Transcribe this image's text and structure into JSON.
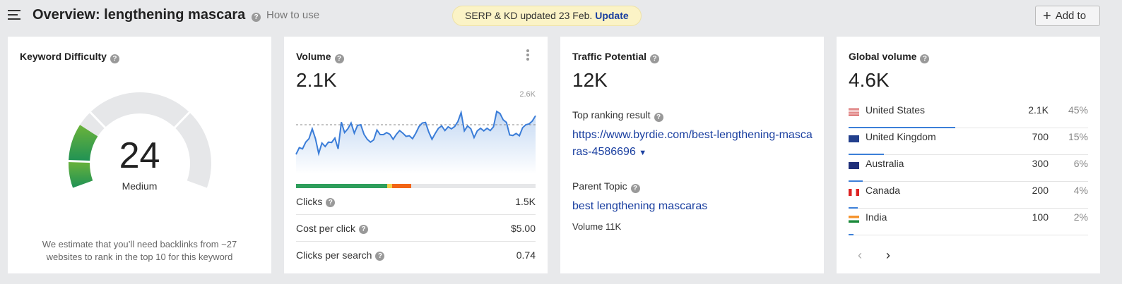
{
  "header": {
    "title": "Overview: lengthening mascara",
    "how_to_use": "How to use",
    "serp_notice": "SERP & KD updated 23 Feb.",
    "serp_update": "Update",
    "add_to": "Add to"
  },
  "kd": {
    "title": "Keyword Difficulty",
    "value": "24",
    "level": "Medium",
    "score": 24,
    "note": "We estimate that you’ll need backlinks from ~27 websites to rank in the top 10 for this keyword",
    "colors": {
      "green_light": "#6bb33a",
      "green_dark": "#1e9155",
      "track": "#e6e7e9"
    }
  },
  "volume": {
    "title": "Volume",
    "value": "2.1K",
    "chart_max_label": "2.6K",
    "click_bar": {
      "green": 0.38,
      "yellow": 0.02,
      "orange": 0.08,
      "colors": {
        "green": "#2e9e5b",
        "yellow": "#f5cf4a",
        "orange": "#f26516",
        "rest": "#e6e7e9"
      }
    },
    "metrics": [
      {
        "label": "Clicks",
        "value": "1.5K"
      },
      {
        "label": "Cost per click",
        "value": "$5.00"
      },
      {
        "label": "Clicks per search",
        "value": "0.74"
      }
    ]
  },
  "chart_data": {
    "type": "area",
    "ylim": [
      0,
      2600
    ],
    "reference_line": 1700,
    "line_color": "#3b7dd8",
    "values": [
      680,
      910,
      870,
      1100,
      1220,
      1560,
      1220,
      710,
      1070,
      950,
      1100,
      1090,
      1240,
      870,
      1790,
      1430,
      1560,
      1760,
      1410,
      1680,
      1700,
      1370,
      1200,
      1100,
      1180,
      1520,
      1360,
      1360,
      1430,
      1370,
      1200,
      1370,
      1500,
      1410,
      1300,
      1320,
      1220,
      1410,
      1640,
      1760,
      1780,
      1450,
      1200,
      1400,
      1580,
      1660,
      1500,
      1630,
      1560,
      1640,
      1810,
      2120,
      1490,
      1660,
      1560,
      1260,
      1490,
      1580,
      1490,
      1580,
      1500,
      1630,
      2160,
      2090,
      1870,
      1780,
      1350,
      1330,
      1400,
      1320,
      1600,
      1700,
      1730,
      1830,
      2010
    ]
  },
  "traffic": {
    "title": "Traffic Potential",
    "value": "12K",
    "top_label": "Top ranking result",
    "top_url": "https://www.byrdie.com/best-lengthening-mascaras-4586696",
    "parent_label": "Parent Topic",
    "parent_topic": "best lengthening mascaras",
    "parent_volume": "Volume 11K"
  },
  "global": {
    "title": "Global volume",
    "value": "4.6K",
    "countries": [
      {
        "name": "United States",
        "volume": "2.1K",
        "pct": "45%",
        "share": 45,
        "flag": "us"
      },
      {
        "name": "United Kingdom",
        "volume": "700",
        "pct": "15%",
        "share": 15,
        "flag": "gb"
      },
      {
        "name": "Australia",
        "volume": "300",
        "pct": "6%",
        "share": 6,
        "flag": "au"
      },
      {
        "name": "Canada",
        "volume": "200",
        "pct": "4%",
        "share": 4,
        "flag": "ca"
      },
      {
        "name": "India",
        "volume": "100",
        "pct": "2%",
        "share": 2,
        "flag": "in"
      }
    ],
    "prev_icon": "chevron-left-icon",
    "next_icon": "chevron-right-icon"
  }
}
